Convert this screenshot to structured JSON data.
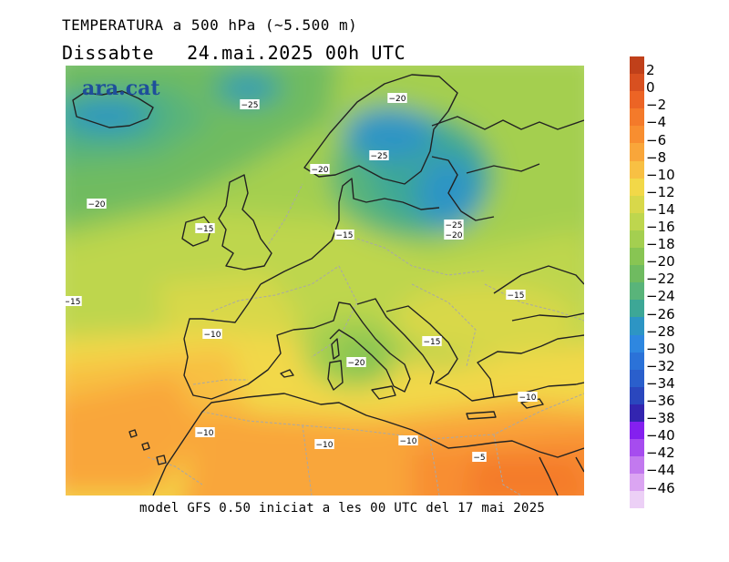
{
  "title_line1": "TEMPERATURA a 500 hPa (~5.500 m)",
  "title_day": "Dissabte",
  "title_datetime": "24.mai.2025 00h UTC",
  "footer": "model GFS 0.50 iniciat a les 00 UTC del 17 mai 2025",
  "brand": "ara.cat",
  "colorbar": {
    "levels": [
      "2",
      "0",
      "−2",
      "−4",
      "−6",
      "−8",
      "−10",
      "−12",
      "−14",
      "−16",
      "−18",
      "−20",
      "−22",
      "−24",
      "−26",
      "−28",
      "−30",
      "−32",
      "−34",
      "−36",
      "−38",
      "−40",
      "−42",
      "−44",
      "−46"
    ],
    "colors": [
      "#c0401a",
      "#d85020",
      "#ec6425",
      "#f47a2a",
      "#f88e30",
      "#f9a63a",
      "#f8c043",
      "#f2d848",
      "#d8d84a",
      "#bed64e",
      "#a4cf50",
      "#88c553",
      "#6fbb60",
      "#59b47a",
      "#3da796",
      "#2d95c4",
      "#2e87e0",
      "#2b72d8",
      "#2a5fcc",
      "#2a47be",
      "#3325b0",
      "#8420ef",
      "#a64cef",
      "#c279ef",
      "#dba5f2",
      "#ecd0f6"
    ]
  },
  "contour_labels": [
    {
      "text": "−25"
    },
    {
      "text": "−20"
    },
    {
      "text": "−20"
    },
    {
      "text": "−25"
    },
    {
      "text": "−20"
    },
    {
      "text": "−15"
    },
    {
      "text": "−15"
    },
    {
      "text": "−25"
    },
    {
      "text": "−20"
    },
    {
      "text": "−15"
    },
    {
      "text": "−15"
    },
    {
      "text": "−10"
    },
    {
      "text": "−15"
    },
    {
      "text": "−20"
    },
    {
      "text": "−10"
    },
    {
      "text": "−10"
    },
    {
      "text": "−10"
    },
    {
      "text": "−10"
    },
    {
      "text": "−5"
    }
  ]
}
